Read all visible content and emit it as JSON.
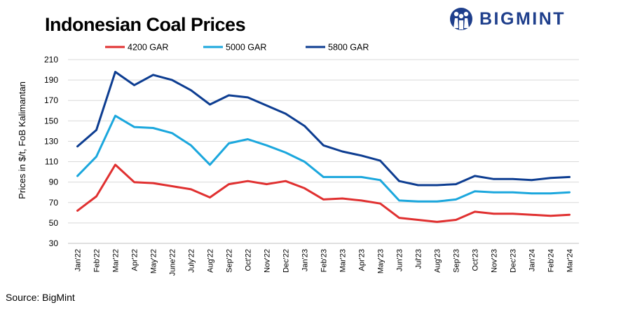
{
  "header": {
    "title": "Indonesian Coal Prices",
    "brand": "BIGMINT"
  },
  "footer": {
    "source": "Source: BigMint"
  },
  "colors": {
    "red": "#e03030",
    "light_blue": "#1ba7dd",
    "dark_blue": "#0d3d91",
    "brand": "#1f3f8c",
    "grid": "#d9d9d9"
  },
  "chart_data": {
    "type": "line",
    "title": "Indonesian Coal Prices",
    "xlabel": "",
    "ylabel": "Prices in $/t, FoB Kalimantan",
    "ylim": [
      30,
      210
    ],
    "yticks": [
      30,
      50,
      70,
      90,
      110,
      130,
      150,
      170,
      190,
      210
    ],
    "grid": true,
    "legend_position": "top-center",
    "categories": [
      "Jan'22",
      "Feb'22",
      "Mar'22",
      "Apr'22",
      "May'22",
      "June'22",
      "July'22",
      "Aug'22",
      "Sep'22",
      "Oct'22",
      "Nov'22",
      "Dec'22",
      "Jan'23",
      "Feb'23",
      "Mar'23",
      "Apr'23",
      "May'23",
      "Jun'23",
      "Jul'23",
      "Aug'23",
      "Sep'23",
      "Oct'23",
      "Nov'23",
      "Dec'23",
      "Jan'24",
      "Feb'24",
      "Mar'24"
    ],
    "series": [
      {
        "name": "4200 GAR",
        "color": "#e03030",
        "values": [
          62,
          76,
          107,
          90,
          89,
          86,
          83,
          75,
          88,
          91,
          88,
          91,
          84,
          73,
          74,
          72,
          69,
          55,
          53,
          51,
          53,
          61,
          59,
          59,
          58,
          57,
          58
        ]
      },
      {
        "name": "5000 GAR",
        "color": "#1ba7dd",
        "values": [
          96,
          115,
          155,
          144,
          143,
          138,
          126,
          107,
          128,
          132,
          126,
          119,
          110,
          95,
          95,
          95,
          92,
          72,
          71,
          71,
          73,
          81,
          80,
          80,
          79,
          79,
          80
        ]
      },
      {
        "name": "5800 GAR",
        "color": "#0d3d91",
        "values": [
          125,
          141,
          198,
          185,
          195,
          190,
          180,
          166,
          175,
          173,
          165,
          157,
          145,
          126,
          120,
          116,
          111,
          91,
          87,
          87,
          88,
          96,
          93,
          93,
          92,
          94,
          95
        ]
      }
    ]
  }
}
